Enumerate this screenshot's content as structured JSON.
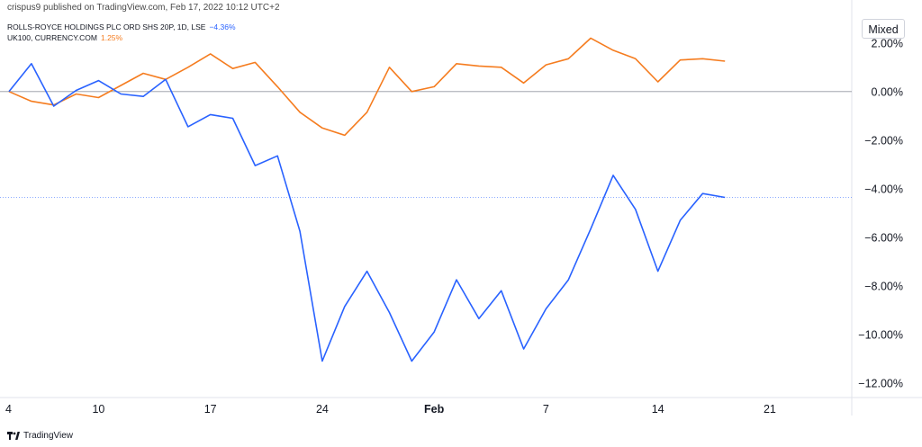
{
  "publisher_line": "crispus9 published on TradingView.com, Feb 17, 2022 10:12 UTC+2",
  "brand": "TradingView",
  "scale_mode_label": "Mixed",
  "legend": [
    {
      "label": "ROLLS-ROYCE HOLDINGS PLC ORD SHS 20P, 1D, LSE",
      "value": "−4.36%",
      "color": "#2962ff"
    },
    {
      "label": "UK100, CURRENCY.COM",
      "value": "1.25%",
      "color": "#f57c1f"
    }
  ],
  "chart_data": {
    "type": "line",
    "x_ticks": [
      "4",
      "10",
      "17",
      "24",
      "Feb",
      "7",
      "14",
      "21"
    ],
    "y_ticks": [
      "2.00%",
      "0.00%",
      "−2.00%",
      "−4.00%",
      "−6.00%",
      "−8.00%",
      "−10.00%",
      "−12.00%"
    ],
    "ylim": [
      -12.6,
      3.4
    ],
    "x": [
      "2022-01-04",
      "2022-01-05",
      "2022-01-06",
      "2022-01-07",
      "2022-01-10",
      "2022-01-11",
      "2022-01-12",
      "2022-01-13",
      "2022-01-14",
      "2022-01-17",
      "2022-01-18",
      "2022-01-19",
      "2022-01-20",
      "2022-01-21",
      "2022-01-24",
      "2022-01-25",
      "2022-01-26",
      "2022-01-27",
      "2022-01-28",
      "2022-01-31",
      "2022-02-01",
      "2022-02-02",
      "2022-02-03",
      "2022-02-04",
      "2022-02-07",
      "2022-02-08",
      "2022-02-09",
      "2022-02-10",
      "2022-02-11",
      "2022-02-14",
      "2022-02-15",
      "2022-02-16",
      "2022-02-17"
    ],
    "series": [
      {
        "name": "ROLLS-ROYCE HOLDINGS PLC ORD SHS 20P, 1D, LSE",
        "color": "#2962ff",
        "values": [
          0.0,
          1.15,
          -0.6,
          0.05,
          0.45,
          -0.1,
          -0.2,
          0.5,
          -1.45,
          -0.95,
          -1.1,
          -3.05,
          -2.65,
          -5.75,
          -11.1,
          -8.85,
          -7.4,
          -9.1,
          -11.1,
          -9.9,
          -7.75,
          -9.35,
          -8.2,
          -10.6,
          -8.95,
          -7.75,
          -5.65,
          -3.45,
          -4.85,
          -7.4,
          -5.3,
          -4.2,
          -4.36
        ]
      },
      {
        "name": "UK100, CURRENCY.COM",
        "color": "#f57c1f",
        "values": [
          0.0,
          -0.4,
          -0.55,
          -0.1,
          -0.25,
          0.25,
          0.75,
          0.5,
          1.0,
          1.55,
          0.95,
          1.2,
          0.2,
          -0.85,
          -1.5,
          -1.8,
          -0.85,
          1.0,
          0.0,
          0.2,
          1.15,
          1.05,
          1.0,
          0.35,
          1.1,
          1.35,
          2.2,
          1.7,
          1.35,
          0.4,
          1.3,
          1.35,
          1.25
        ]
      }
    ],
    "last_value_line": {
      "series": 0,
      "value": -4.36
    },
    "grid": false,
    "legend_position": "top-left"
  }
}
